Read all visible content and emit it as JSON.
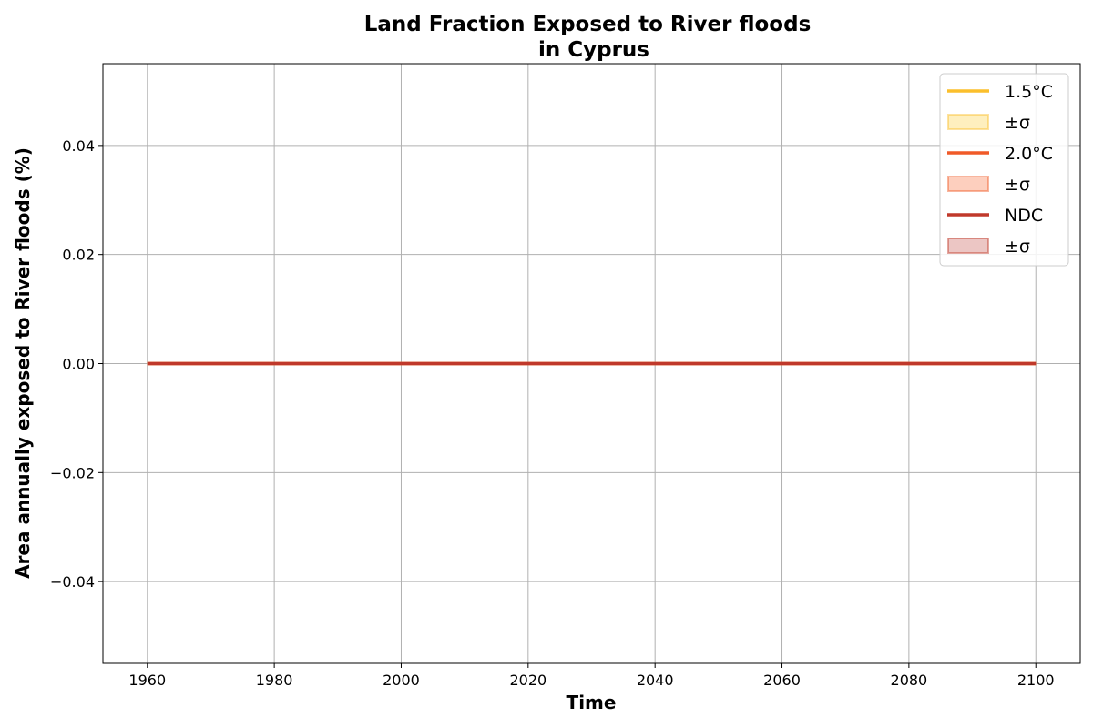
{
  "chart_data": {
    "type": "line",
    "title": "Land Fraction Exposed to River floods",
    "subtitle": "in Cyprus",
    "xlabel": "Time",
    "ylabel": "Area annually exposed to River floods (%)",
    "xlim": [
      1953,
      2107
    ],
    "ylim": [
      -0.055,
      0.055
    ],
    "xticks": [
      1960,
      1980,
      2000,
      2020,
      2040,
      2060,
      2080,
      2100
    ],
    "xtick_labels": [
      "1960",
      "1980",
      "2000",
      "2020",
      "2040",
      "2060",
      "2080",
      "2100"
    ],
    "yticks": [
      -0.04,
      -0.02,
      0.0,
      0.02,
      0.04
    ],
    "ytick_labels": [
      "−0.04",
      "−0.02",
      "0.00",
      "0.02",
      "0.04"
    ],
    "grid": true,
    "legend_position": "top-right",
    "series": [
      {
        "name": "1.5°C",
        "band_label": "±σ",
        "color": "#fbbf2c",
        "band_color": "#fde9a8",
        "x": [
          1960,
          2100
        ],
        "values": [
          0.0,
          0.0
        ],
        "lower": [
          0.0,
          0.0
        ],
        "upper": [
          0.0,
          0.0
        ]
      },
      {
        "name": "2.0°C",
        "band_label": "±σ",
        "color": "#f05a28",
        "band_color": "#fcbfa8",
        "x": [
          1960,
          2100
        ],
        "values": [
          0.0,
          0.0
        ],
        "lower": [
          0.0,
          0.0
        ],
        "upper": [
          0.0,
          0.0
        ]
      },
      {
        "name": "NDC",
        "band_label": "±σ",
        "color": "#c0392b",
        "band_color": "#e6b3b0",
        "x": [
          1960,
          2100
        ],
        "values": [
          0.0,
          0.0
        ],
        "lower": [
          0.0,
          0.0
        ],
        "upper": [
          0.0,
          0.0
        ]
      }
    ]
  }
}
